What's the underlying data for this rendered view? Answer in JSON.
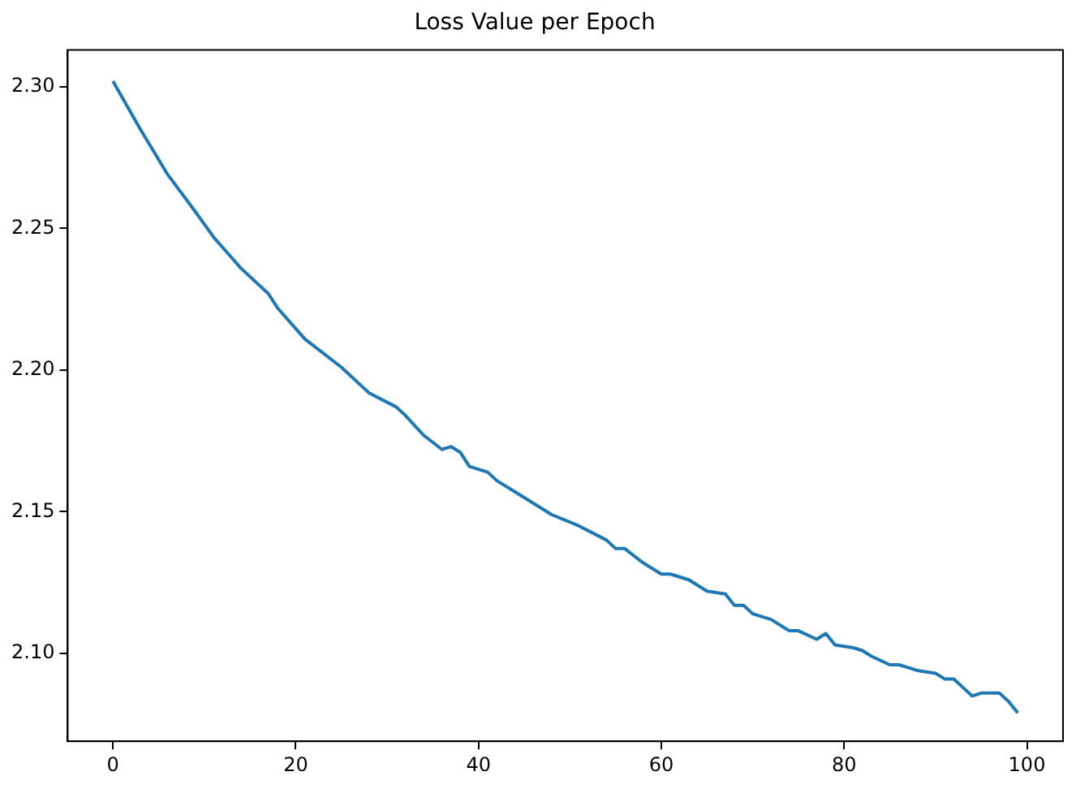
{
  "chart_data": {
    "type": "line",
    "title": "Loss Value per Epoch",
    "x": [
      0,
      3,
      6,
      9,
      11,
      14,
      17,
      18,
      21,
      25,
      28,
      31,
      32,
      34,
      36,
      37,
      38,
      39,
      41,
      42,
      44,
      46,
      48,
      51,
      54,
      55,
      56,
      58,
      60,
      61,
      63,
      65,
      67,
      68,
      69,
      70,
      72,
      74,
      75,
      77,
      78,
      79,
      81,
      82,
      83,
      85,
      86,
      87,
      88,
      90,
      91,
      92,
      93,
      94,
      95,
      97,
      98,
      99
    ],
    "series": [
      {
        "color": "#1f77b4",
        "values": [
          2.302,
          2.285,
          2.269,
          2.256,
          2.247,
          2.236,
          2.227,
          2.222,
          2.211,
          2.201,
          2.192,
          2.187,
          2.184,
          2.177,
          2.172,
          2.173,
          2.171,
          2.166,
          2.164,
          2.161,
          2.157,
          2.153,
          2.149,
          2.145,
          2.14,
          2.137,
          2.137,
          2.132,
          2.128,
          2.128,
          2.126,
          2.122,
          2.121,
          2.117,
          2.117,
          2.114,
          2.112,
          2.108,
          2.108,
          2.105,
          2.107,
          2.103,
          2.102,
          2.101,
          2.099,
          2.096,
          2.096,
          2.095,
          2.094,
          2.093,
          2.091,
          2.091,
          2.088,
          2.085,
          2.086,
          2.086,
          2.083,
          2.079
        ]
      }
    ],
    "xlim": [
      -4.95,
      103.95
    ],
    "ylim": [
      2.069,
      2.313
    ],
    "xticks": [
      0,
      20,
      40,
      60,
      80,
      100
    ],
    "yticks": [
      {
        "value": 2.1,
        "label": "2.10"
      },
      {
        "value": 2.15,
        "label": "2.15"
      },
      {
        "value": 2.2,
        "label": "2.20"
      },
      {
        "value": 2.25,
        "label": "2.25"
      },
      {
        "value": 2.3,
        "label": "2.30"
      }
    ],
    "grid": false,
    "legend": false,
    "marker": "none",
    "line_style": "solid"
  }
}
